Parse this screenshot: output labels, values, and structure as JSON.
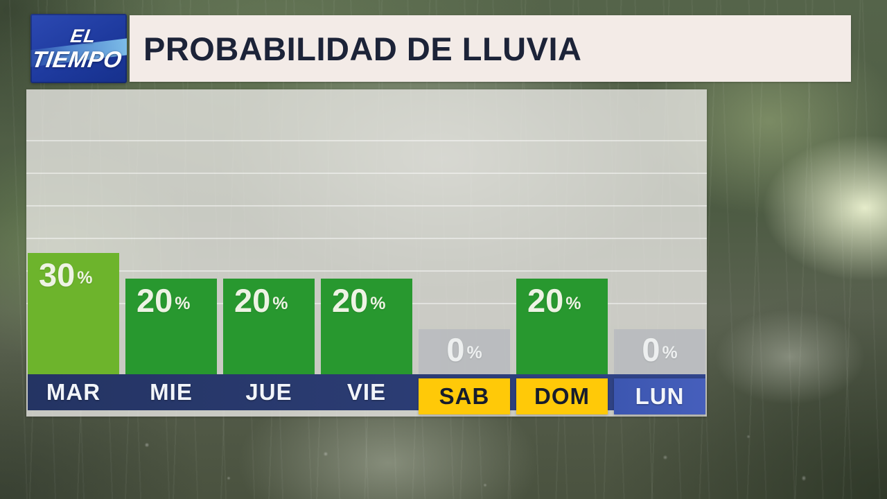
{
  "brand": {
    "line1": "EL",
    "line2": "TIEMPO"
  },
  "header": {
    "title": "PROBABILIDAD DE LLUVIA"
  },
  "chart_data": {
    "type": "bar",
    "title": "PROBABILIDAD DE LLUVIA",
    "categories": [
      "MAR",
      "MIE",
      "JUE",
      "VIE",
      "SAB",
      "DOM",
      "LUN"
    ],
    "values": [
      30,
      20,
      20,
      20,
      0,
      20,
      0
    ],
    "bar_labels": [
      "30%",
      "20%",
      "20%",
      "20%",
      "0%",
      "20%",
      "0%"
    ],
    "unit": "%",
    "xlabel": "",
    "ylabel": "",
    "ylim": [
      0,
      100
    ],
    "grid": true,
    "legend": false,
    "today_index": 0,
    "weekend_indices": [
      4,
      5
    ],
    "next_week_indices": [
      6
    ]
  },
  "colors": {
    "header_bg": "#f3ebe7",
    "title_text": "#1c2338",
    "logo_bg": "#2c49b2",
    "logo_swoosh": "#4d82cc",
    "bar_green": "#28982f",
    "bar_today_green": "#6db42c",
    "bar_zero_gray": "#b8bbbf",
    "value_text": "#eef3e4",
    "strip_left": "#243463",
    "strip_right": "#31458c",
    "weekend_bg": "#ffc908",
    "weekend_text": "#161c2d",
    "next_week_bg": "#3c56b0",
    "day_text": "#f2f5fa"
  }
}
